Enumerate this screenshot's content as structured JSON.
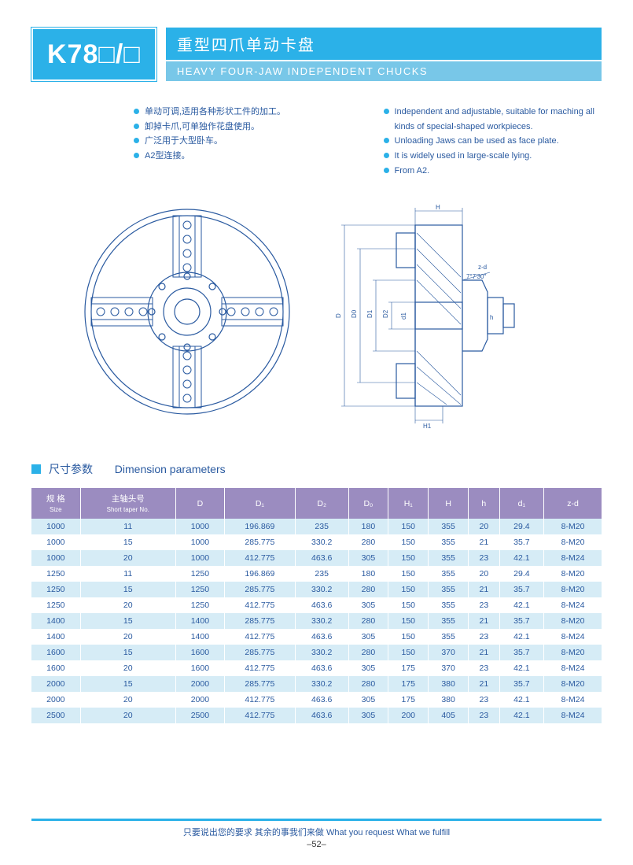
{
  "header": {
    "model": "K78□/□",
    "title_cn": "重型四爪单动卡盘",
    "title_en": "HEAVY FOUR-JAW INDEPENDENT CHUCKS"
  },
  "features": {
    "cn": [
      "单动可调,适用各种形状工件的加工。",
      "卸掉卡爪,可单独作花盘使用。",
      "广泛用于大型卧车。",
      "A2型连接。"
    ],
    "en": [
      "Independent and adjustable, suitable for maching all kinds of special-shaped workpieces.",
      "Unloading Jaws can be used as face plate.",
      "It is widely used in large-scale lying.",
      "From A2."
    ]
  },
  "diagram": {
    "angle_label": "7°7′30″",
    "dim_labels": [
      "D",
      "D0",
      "D1",
      "D2",
      "d1",
      "H",
      "H1",
      "h",
      "z-d"
    ],
    "stroke": "#2a5aa0"
  },
  "section": {
    "cn": "尺寸参数",
    "en": "Dimension parameters"
  },
  "table": {
    "columns": [
      "规 格\nSize",
      "主轴头号\nShort taper No.",
      "D",
      "D₁",
      "D₂",
      "D₀",
      "H₁",
      "H",
      "h",
      "d₁",
      "z-d"
    ],
    "rows": [
      [
        "1000",
        "11",
        "1000",
        "196.869",
        "235",
        "180",
        "150",
        "355",
        "20",
        "29.4",
        "8-M20"
      ],
      [
        "1000",
        "15",
        "1000",
        "285.775",
        "330.2",
        "280",
        "150",
        "355",
        "21",
        "35.7",
        "8-M20"
      ],
      [
        "1000",
        "20",
        "1000",
        "412.775",
        "463.6",
        "305",
        "150",
        "355",
        "23",
        "42.1",
        "8-M24"
      ],
      [
        "1250",
        "11",
        "1250",
        "196.869",
        "235",
        "180",
        "150",
        "355",
        "20",
        "29.4",
        "8-M20"
      ],
      [
        "1250",
        "15",
        "1250",
        "285.775",
        "330.2",
        "280",
        "150",
        "355",
        "21",
        "35.7",
        "8-M20"
      ],
      [
        "1250",
        "20",
        "1250",
        "412.775",
        "463.6",
        "305",
        "150",
        "355",
        "23",
        "42.1",
        "8-M24"
      ],
      [
        "1400",
        "15",
        "1400",
        "285.775",
        "330.2",
        "280",
        "150",
        "355",
        "21",
        "35.7",
        "8-M20"
      ],
      [
        "1400",
        "20",
        "1400",
        "412.775",
        "463.6",
        "305",
        "150",
        "355",
        "23",
        "42.1",
        "8-M24"
      ],
      [
        "1600",
        "15",
        "1600",
        "285.775",
        "330.2",
        "280",
        "150",
        "370",
        "21",
        "35.7",
        "8-M20"
      ],
      [
        "1600",
        "20",
        "1600",
        "412.775",
        "463.6",
        "305",
        "175",
        "370",
        "23",
        "42.1",
        "8-M24"
      ],
      [
        "2000",
        "15",
        "2000",
        "285.775",
        "330.2",
        "280",
        "175",
        "380",
        "21",
        "35.7",
        "8-M20"
      ],
      [
        "2000",
        "20",
        "2000",
        "412.775",
        "463.6",
        "305",
        "175",
        "380",
        "23",
        "42.1",
        "8-M24"
      ],
      [
        "2500",
        "20",
        "2500",
        "412.775",
        "463.6",
        "305",
        "200",
        "405",
        "23",
        "42.1",
        "8-M24"
      ]
    ]
  },
  "footer": {
    "text": "只要说出您的要求 其余的事我们来做   What you request  What we fulfill",
    "page": "–52–"
  },
  "colors": {
    "primary": "#2bb1e8",
    "header_purple": "#9b8cc0",
    "row_blue": "#d6ecf6",
    "text_blue": "#2a5aa0"
  }
}
